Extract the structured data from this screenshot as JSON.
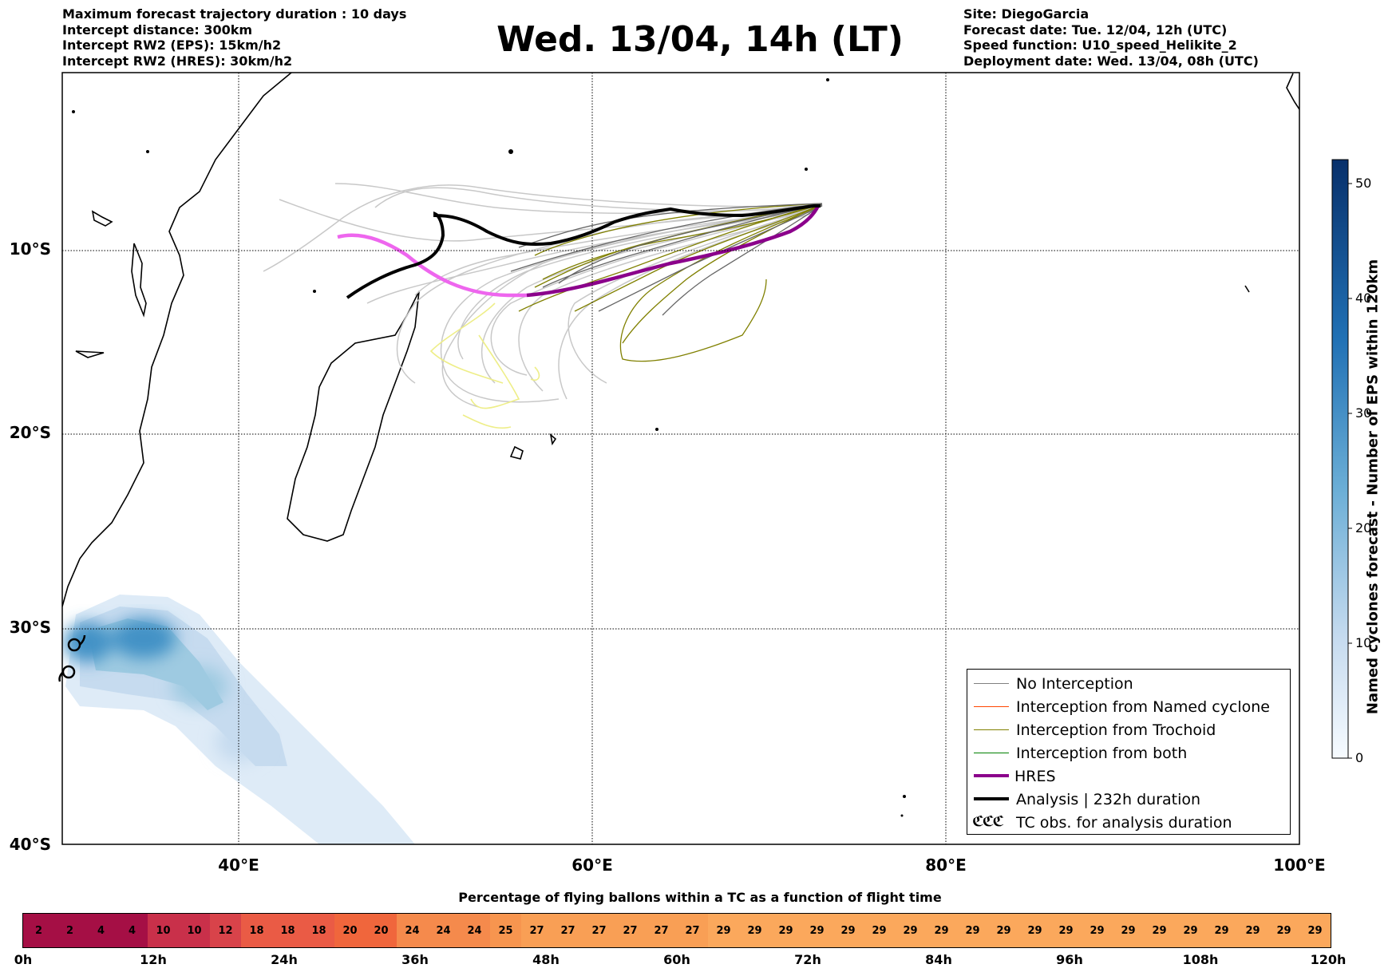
{
  "header": {
    "left_lines": [
      "Maximum forecast trajectory duration : 10 days",
      "Intercept distance: 300km",
      "Intercept RW2 (EPS):  15km/h2",
      "Intercept RW2 (HRES): 30km/h2"
    ],
    "title": "Wed. 13/04, 14h (LT)",
    "right_lines": [
      "Site: DiegoGarcia",
      "Forecast date: Tue. 12/04, 12h (UTC)",
      "Speed function: U10_speed_Helikite_2",
      "Deployment date: Wed. 13/04, 08h (UTC)"
    ]
  },
  "map": {
    "lat_labels": [
      "10°S",
      "20°S",
      "30°S",
      "40°S"
    ],
    "lon_labels": [
      "40°E",
      "60°E",
      "80°E",
      "100°E"
    ],
    "lon_range": [
      30,
      100
    ],
    "lat_range": [
      -40,
      0
    ],
    "grid": "dotted",
    "colors": {
      "no_interception": "#808080",
      "named_cyclone": "#ff4500",
      "trochoid": "#808000",
      "both": "#008000",
      "hres": "#8b008b",
      "analysis": "#000000",
      "hres_early": "#ee66ee",
      "trajectory_light": "#c8c8c8",
      "trajectory_yellow": "#eeee88"
    }
  },
  "colorbar": {
    "title": "Named cyclones forecast - Number of EPS within 120km",
    "ticks": [
      "0",
      "10",
      "20",
      "30",
      "40",
      "50"
    ],
    "colors": [
      "#f7fbff",
      "#08306b"
    ]
  },
  "legend": {
    "items": [
      {
        "label": "No Interception",
        "color": "#808080",
        "style": "thin"
      },
      {
        "label": "Interception from Named cyclone",
        "color": "#ff4500",
        "style": "thin"
      },
      {
        "label": "Interception from Trochoid",
        "color": "#808000",
        "style": "thin"
      },
      {
        "label": "Interception from both",
        "color": "#008000",
        "style": "thin"
      },
      {
        "label": "HRES",
        "color": "#8b008b",
        "style": "thick"
      },
      {
        "label": "Analysis | 232h duration",
        "color": "#000000",
        "style": "thick"
      },
      {
        "label": "TC obs. for analysis duration",
        "color": "#000000",
        "style": "tc"
      }
    ],
    "tc_symbol": "ℭℭℭ"
  },
  "percentage": {
    "title": "Percentage of flying ballons within a TC as a function of flight time",
    "values": [
      "2",
      "2",
      "4",
      "4",
      "10",
      "10",
      "12",
      "18",
      "18",
      "18",
      "20",
      "20",
      "24",
      "24",
      "24",
      "25",
      "27",
      "27",
      "27",
      "27",
      "27",
      "27",
      "29",
      "29",
      "29",
      "29",
      "29",
      "29",
      "29",
      "29",
      "29",
      "29",
      "29",
      "29",
      "29",
      "29",
      "29",
      "29",
      "29",
      "29",
      "29",
      "29"
    ],
    "time_labels": [
      "0h",
      "12h",
      "24h",
      "36h",
      "48h",
      "60h",
      "72h",
      "84h",
      "96h",
      "108h",
      "120h"
    ]
  }
}
